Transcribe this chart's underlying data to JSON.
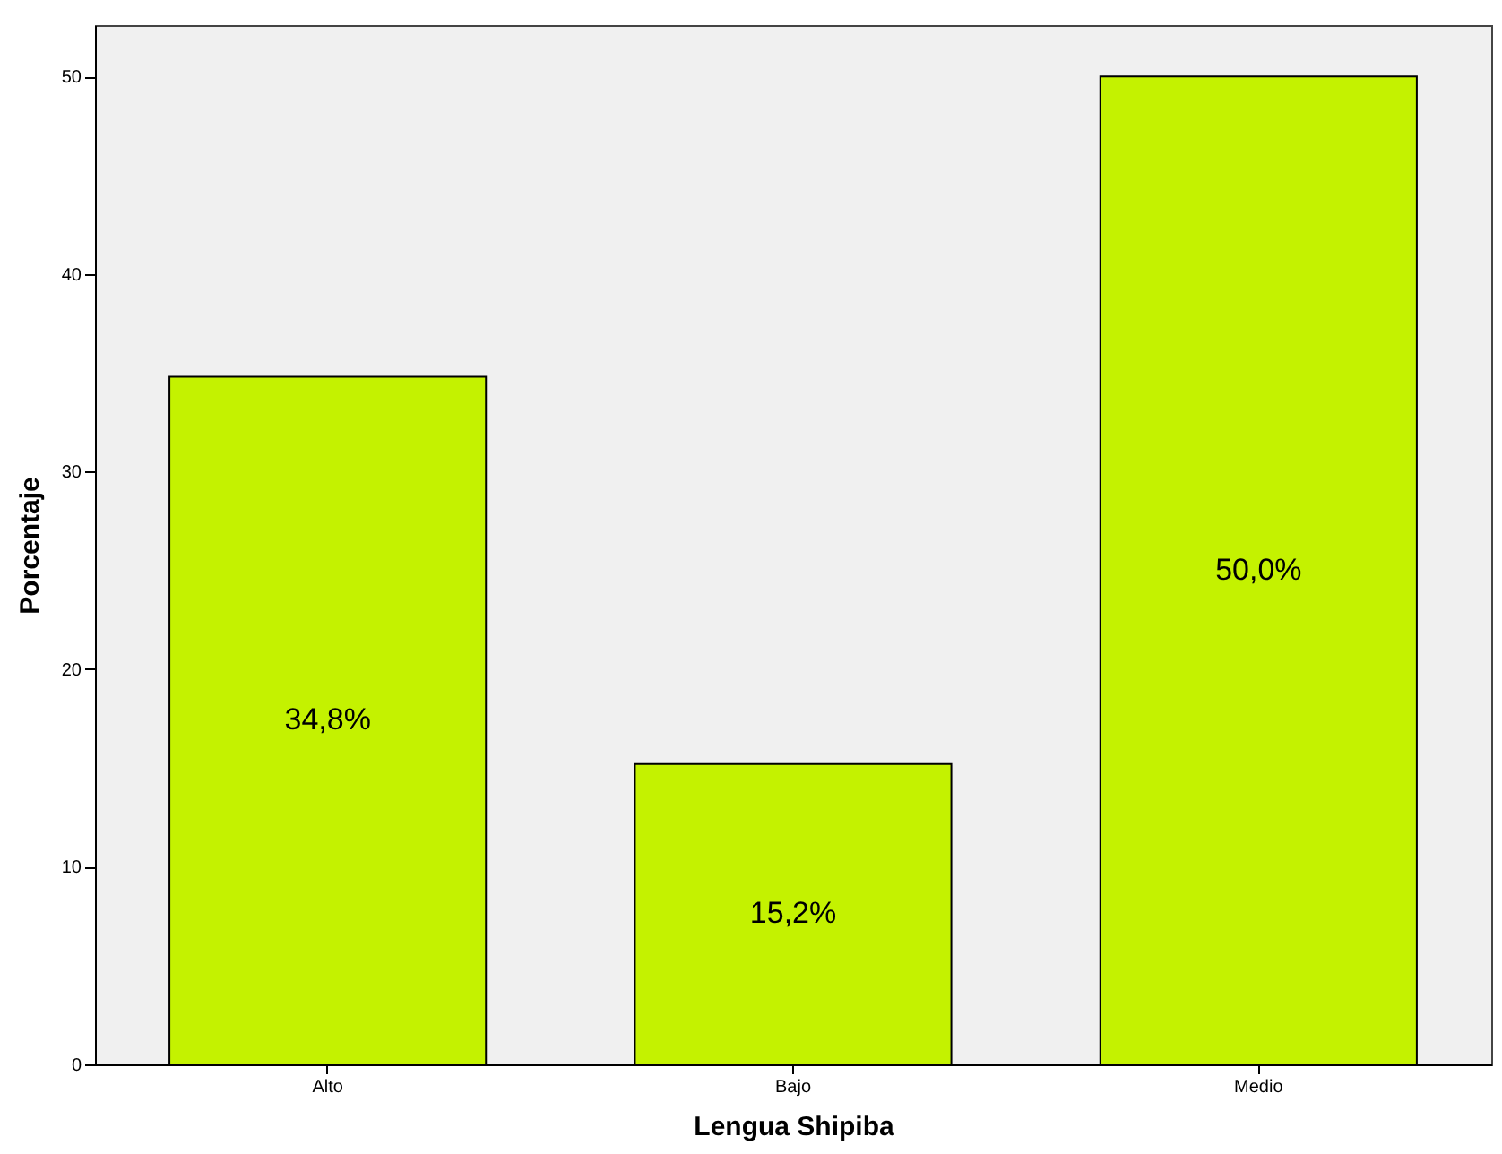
{
  "chart_data": {
    "type": "bar",
    "xlabel": "Lengua Shipiba",
    "ylabel": "Porcentaje",
    "categories": [
      "Alto",
      "Bajo",
      "Medio"
    ],
    "values": [
      34.8,
      15.2,
      50.0
    ],
    "value_labels": [
      "34,8%",
      "15,2%",
      "50,0%"
    ],
    "color": "#c4f200",
    "ylim": [
      0,
      52.6
    ],
    "yticks": [
      0,
      10,
      20,
      30,
      40,
      50
    ],
    "grid": false
  }
}
